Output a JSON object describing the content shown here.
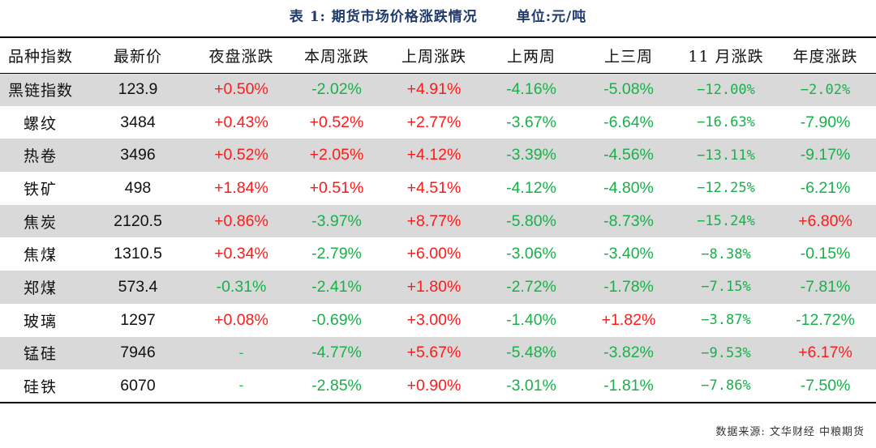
{
  "title": {
    "label": "表 1: 期货市场价格涨跌情况",
    "unit": "单位:元/吨"
  },
  "columns": [
    "品种指数",
    "最新价",
    "夜盘涨跌",
    "本周涨跌",
    "上周涨跌",
    "上两周",
    "上三周",
    "11 月涨跌",
    "年度涨跌"
  ],
  "rows": [
    {
      "name": "黑链指数",
      "price": "123.9",
      "night": "+0.50%",
      "this_week": "-2.02%",
      "last_week": "+4.91%",
      "two_weeks": "-4.16%",
      "three_weeks": "-5.08%",
      "november": "−12.00%",
      "year": "−2.02%"
    },
    {
      "name": "螺纹",
      "price": "3484",
      "night": "+0.43%",
      "this_week": "+0.52%",
      "last_week": "+2.77%",
      "two_weeks": "-3.67%",
      "three_weeks": "-6.64%",
      "november": "−16.63%",
      "year": "-7.90%"
    },
    {
      "name": "热卷",
      "price": "3496",
      "night": "+0.52%",
      "this_week": "+2.05%",
      "last_week": "+4.12%",
      "two_weeks": "-3.39%",
      "three_weeks": "-4.56%",
      "november": "−13.11%",
      "year": "-9.17%"
    },
    {
      "name": "铁矿",
      "price": "498",
      "night": "+1.84%",
      "this_week": "+0.51%",
      "last_week": "+4.51%",
      "two_weeks": "-4.12%",
      "three_weeks": "-4.80%",
      "november": "−12.25%",
      "year": "-6.21%"
    },
    {
      "name": "焦炭",
      "price": "2120.5",
      "night": "+0.86%",
      "this_week": "-3.97%",
      "last_week": "+8.77%",
      "two_weeks": "-5.80%",
      "three_weeks": "-8.73%",
      "november": "−15.24%",
      "year": "+6.80%"
    },
    {
      "name": "焦煤",
      "price": "1310.5",
      "night": "+0.34%",
      "this_week": "-2.79%",
      "last_week": "+6.00%",
      "two_weeks": "-3.06%",
      "three_weeks": "-3.40%",
      "november": "−8.38%",
      "year": "-0.15%"
    },
    {
      "name": "郑煤",
      "price": "573.4",
      "night": "-0.31%",
      "this_week": "-2.41%",
      "last_week": "+1.80%",
      "two_weeks": "-2.72%",
      "three_weeks": "-1.78%",
      "november": "−7.15%",
      "year": "-7.81%"
    },
    {
      "name": "玻璃",
      "price": "1297",
      "night": "+0.08%",
      "this_week": "-0.69%",
      "last_week": "+3.00%",
      "two_weeks": "-1.40%",
      "three_weeks": "+1.82%",
      "november": "−3.87%",
      "year": "-12.72%"
    },
    {
      "name": "锰硅",
      "price": "7946",
      "night": "-",
      "this_week": "-4.77%",
      "last_week": "+5.67%",
      "two_weeks": "-5.48%",
      "three_weeks": "-3.82%",
      "november": "−9.53%",
      "year": "+6.17%"
    },
    {
      "name": "硅铁",
      "price": "6070",
      "night": "-",
      "this_week": "-2.85%",
      "last_week": "+0.90%",
      "two_weeks": "-3.01%",
      "three_weeks": "-1.81%",
      "november": "−7.86%",
      "year": "-7.50%"
    }
  ],
  "source": "数据来源: 文华财经 中粮期货",
  "colors": {
    "up": "#ff1a1a",
    "down": "#19b04a",
    "shade": "#d9d9d9",
    "title": "#1f3a6e"
  }
}
